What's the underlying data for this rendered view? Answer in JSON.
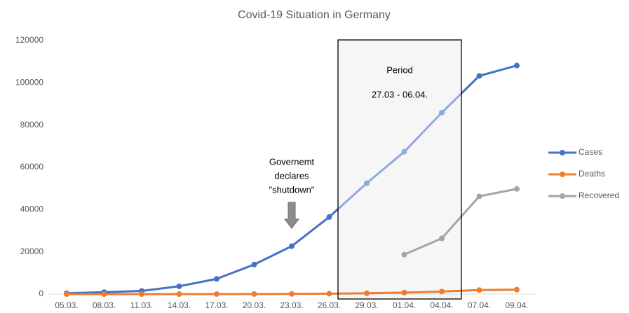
{
  "chart_data": {
    "type": "line",
    "title": "Covid-19 Situation in Germany",
    "categories": [
      "05.03.",
      "08.03.",
      "11.03.",
      "14.03.",
      "17.03.",
      "20.03.",
      "23.03.",
      "26.03.",
      "29.03.",
      "01.04.",
      "04.04.",
      "07.04.",
      "09.04."
    ],
    "series": [
      {
        "name": "Cases",
        "color": "#4472c4",
        "values": [
          400,
          900,
          1500,
          3700,
          7200,
          14000,
          22700,
          36500,
          52500,
          67400,
          85900,
          103300,
          108200
        ]
      },
      {
        "name": "Deaths",
        "color": "#ed7d31",
        "values": [
          0,
          2,
          3,
          8,
          20,
          40,
          100,
          200,
          400,
          700,
          1200,
          1900,
          2100
        ]
      },
      {
        "name": "Recovered",
        "color": "#a5a5a5",
        "values": [
          null,
          null,
          null,
          null,
          null,
          null,
          null,
          null,
          null,
          18700,
          26400,
          46300,
          49800
        ]
      }
    ],
    "ylim": [
      0,
      120000
    ],
    "yticks": [
      0,
      20000,
      40000,
      60000,
      80000,
      100000,
      120000
    ],
    "legend": "right",
    "annotations": {
      "period": [
        "Period",
        "27.03 - 06.04."
      ],
      "shutdown": [
        "Governemt",
        "declares",
        "\"shutdown\""
      ]
    }
  }
}
